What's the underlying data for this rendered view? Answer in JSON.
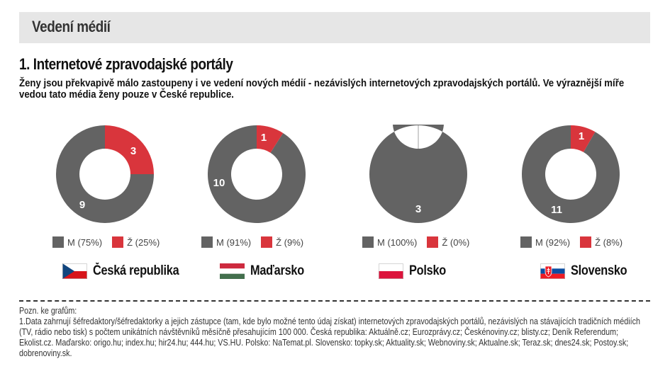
{
  "header": {
    "title": "Vedení médií"
  },
  "section": {
    "title": "1. Internetové zpravodajské portály",
    "intro": "Ženy jsou překvapivě málo zastoupeny i ve vedení nových médií - nezávislých internetových zpravodajských portálů. Ve výraznější míře vedou tato média ženy pouze v České republice."
  },
  "colors": {
    "male": "#636363",
    "female": "#d9353c"
  },
  "chart_data": [
    {
      "type": "pie",
      "country": "Česká republika",
      "categories": [
        "M",
        "Ž"
      ],
      "values": [
        9,
        3
      ],
      "legend": [
        "M (75%)",
        "Ž (25%)"
      ],
      "labels": [
        "9",
        "3"
      ],
      "flag": "czech-flag"
    },
    {
      "type": "pie",
      "country": "Maďarsko",
      "categories": [
        "M",
        "Ž"
      ],
      "values": [
        10,
        1
      ],
      "legend": [
        "M (91%)",
        "Ž (9%)"
      ],
      "labels": [
        "10",
        "1"
      ],
      "flag": "hungary-flag"
    },
    {
      "type": "pie",
      "country": "Polsko",
      "categories": [
        "M",
        "Ž"
      ],
      "values": [
        3,
        0
      ],
      "legend": [
        "M (100%)",
        "Ž (0%)"
      ],
      "labels": [
        "3",
        ""
      ],
      "flag": "poland-flag"
    },
    {
      "type": "pie",
      "country": "Slovensko",
      "categories": [
        "M",
        "Ž"
      ],
      "values": [
        11,
        1
      ],
      "legend": [
        "M (92%)",
        "Ž (8%)"
      ],
      "labels": [
        "11",
        "1"
      ],
      "flag": "slovakia-flag"
    }
  ],
  "note": {
    "heading": "Pozn. ke grafům:",
    "text": "1.Data zahrnují šéfredaktory/šéfredaktorky a jejich zástupce (tam, kde bylo možné tento údaj získat) internetových zpravodajských portálů, nezávislých na stávajících tradičních médiích (TV, rádio nebo tisk) s   počtem unikátních návštěvníků měsíčně přesahujícím 100 000. Česká republika: Aktuálně.cz; Eurozprávy.cz; Českénoviny.cz; blisty.cz; Deník Referendum; Ekolist.cz. Maďarsko: origo.hu; index.hu; hir24.hu; 444.hu; VS.HU. Polsko: NaTemat.pl. Slovensko: topky.sk; Aktuality.sk; Webnoviny.sk; Aktualne.sk; Teraz.sk; dnes24.sk; Postoy.sk; dobrenoviny.sk."
  }
}
